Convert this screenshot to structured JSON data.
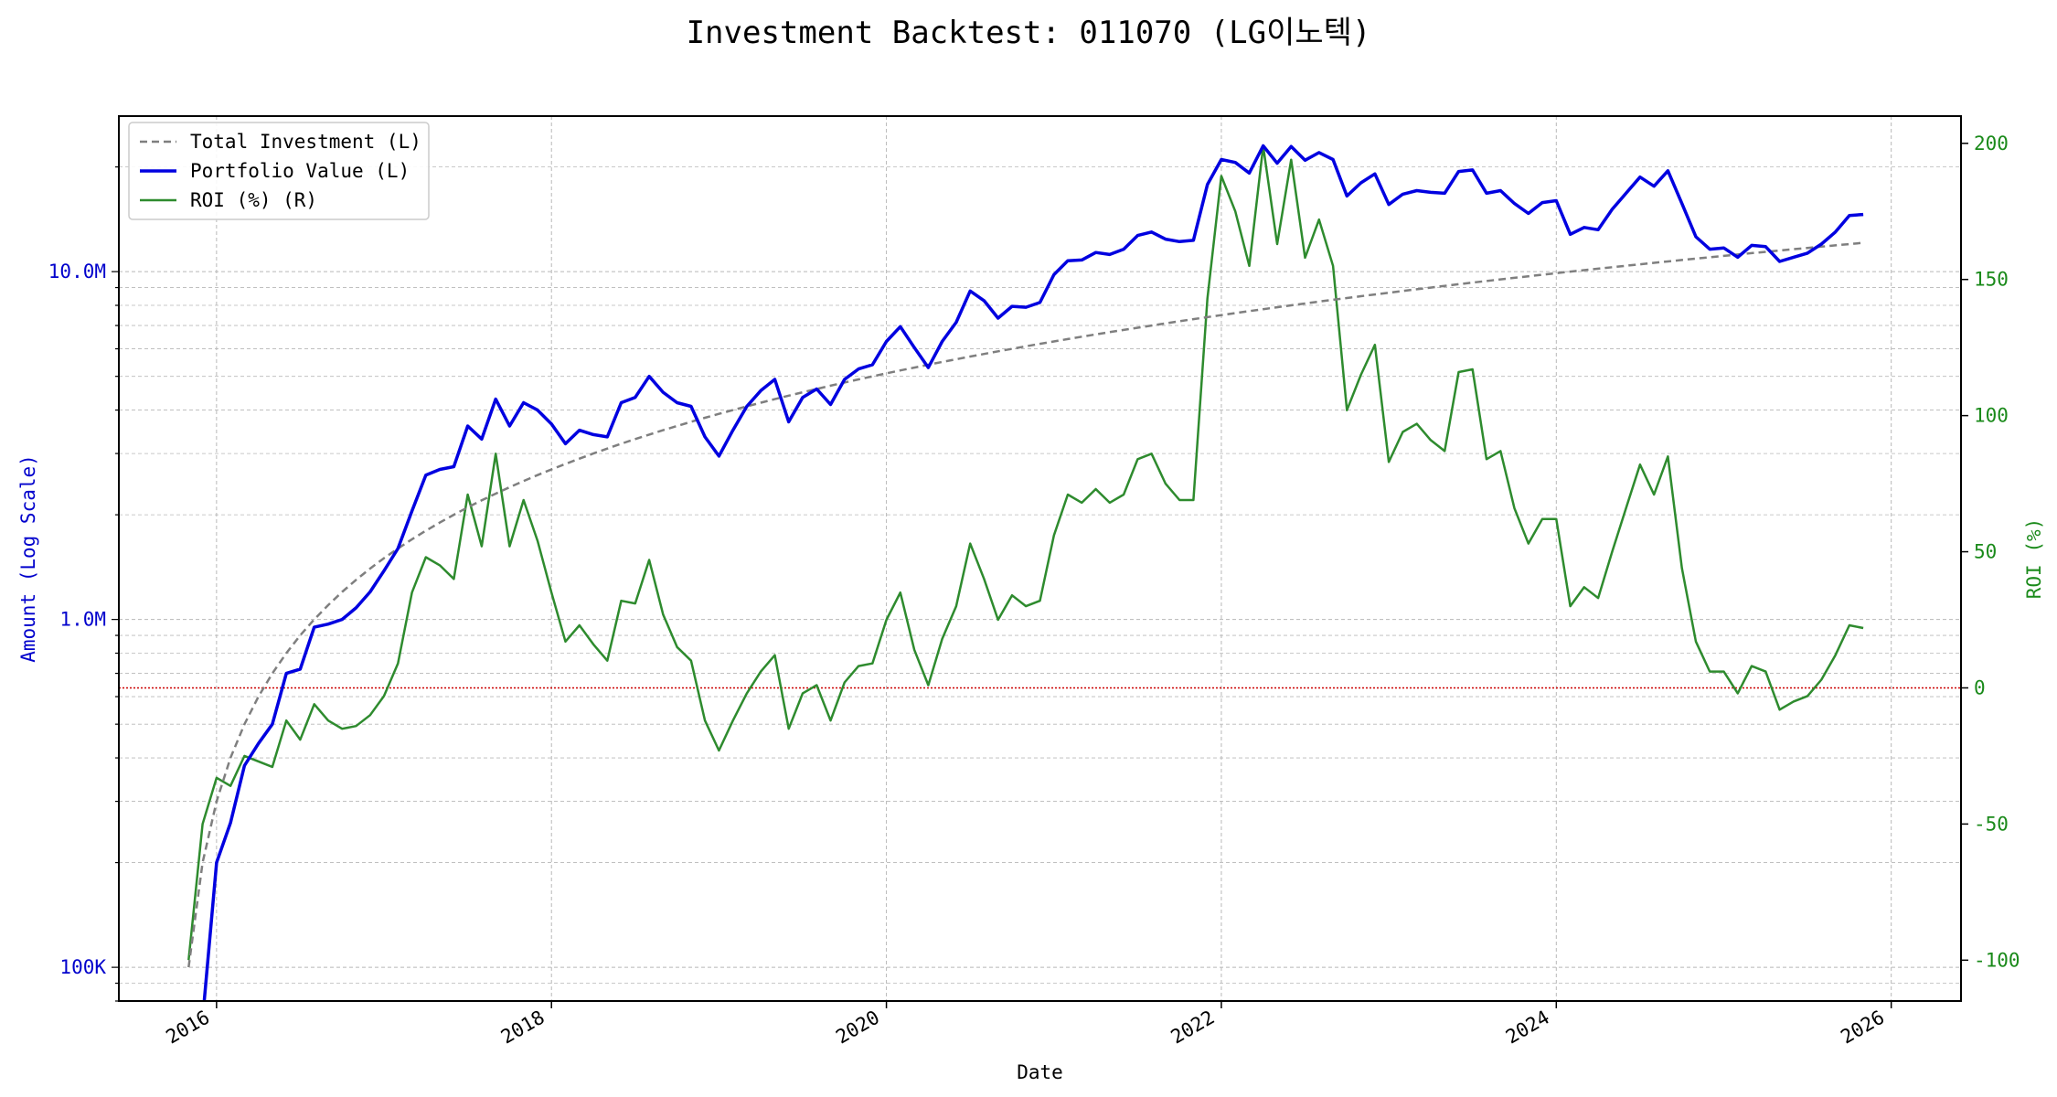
{
  "colors": {
    "investment": "#7f7f7f",
    "portfolio": "#0000e0",
    "roi": "#2e8b2e",
    "left_axis": "#0000cc",
    "right_axis": "#1a8a1a",
    "zero_line": "#cc0000",
    "grid": "#b8b8b8"
  },
  "chart_data": {
    "type": "line",
    "title": "Investment Backtest: 011070 (LG이노텍)",
    "xlabel": "Date",
    "ylabel_left": "Amount (Log Scale)",
    "ylabel_right": "ROI (%)",
    "x_ticks": [
      "2016",
      "2018",
      "2020",
      "2022",
      "2024",
      "2026"
    ],
    "y_left_ticks": [
      "100K",
      "1.0M",
      "10.0M"
    ],
    "y_right_ticks": [
      "-100",
      "-50",
      "0",
      "50",
      "100",
      "150",
      "200"
    ],
    "xlim": [
      "2015-06-01",
      "2026-06-01"
    ],
    "ylim_left": [
      80000,
      28000000
    ],
    "ylim_left_scale": "log",
    "ylim_right": [
      -115,
      210
    ],
    "grid": true,
    "legend_position": "top-left",
    "x": [
      "2015-11",
      "2015-12",
      "2016-01",
      "2016-02",
      "2016-03",
      "2016-04",
      "2016-05",
      "2016-06",
      "2016-07",
      "2016-08",
      "2016-09",
      "2016-10",
      "2016-11",
      "2016-12",
      "2017-01",
      "2017-02",
      "2017-03",
      "2017-04",
      "2017-05",
      "2017-06",
      "2017-07",
      "2017-08",
      "2017-09",
      "2017-10",
      "2017-11",
      "2017-12",
      "2018-01",
      "2018-02",
      "2018-03",
      "2018-04",
      "2018-05",
      "2018-06",
      "2018-07",
      "2018-08",
      "2018-09",
      "2018-10",
      "2018-11",
      "2018-12",
      "2019-01",
      "2019-02",
      "2019-03",
      "2019-04",
      "2019-05",
      "2019-06",
      "2019-07",
      "2019-08",
      "2019-09",
      "2019-10",
      "2019-11",
      "2019-12",
      "2020-01",
      "2020-02",
      "2020-03",
      "2020-04",
      "2020-05",
      "2020-06",
      "2020-07",
      "2020-08",
      "2020-09",
      "2020-10",
      "2020-11",
      "2020-12",
      "2021-01",
      "2021-02",
      "2021-03",
      "2021-04",
      "2021-05",
      "2021-06",
      "2021-07",
      "2021-08",
      "2021-09",
      "2021-10",
      "2021-11",
      "2021-12",
      "2022-01",
      "2022-02",
      "2022-03",
      "2022-04",
      "2022-05",
      "2022-06",
      "2022-07",
      "2022-08",
      "2022-09",
      "2022-10",
      "2022-11",
      "2022-12",
      "2023-01",
      "2023-02",
      "2023-03",
      "2023-04",
      "2023-05",
      "2023-06",
      "2023-07",
      "2023-08",
      "2023-09",
      "2023-10",
      "2023-11",
      "2023-12",
      "2024-01",
      "2024-02",
      "2024-03",
      "2024-04",
      "2024-05",
      "2024-06",
      "2024-07",
      "2024-08",
      "2024-09",
      "2024-10",
      "2024-11",
      "2024-12",
      "2025-01",
      "2025-02",
      "2025-03",
      "2025-04",
      "2025-05",
      "2025-06",
      "2025-07",
      "2025-08",
      "2025-09",
      "2025-10",
      "2025-11"
    ],
    "series": [
      {
        "name": "Total Investment (L)",
        "axis": "left",
        "style": "dashed",
        "values": [
          100000,
          200000,
          300000,
          400000,
          500000,
          600000,
          700000,
          800000,
          900000,
          1000000,
          1100000,
          1200000,
          1300000,
          1400000,
          1500000,
          1600000,
          1700000,
          1800000,
          1900000,
          2000000,
          2100000,
          2200000,
          2300000,
          2400000,
          2500000,
          2600000,
          2700000,
          2800000,
          2900000,
          3000000,
          3100000,
          3200000,
          3300000,
          3400000,
          3500000,
          3600000,
          3700000,
          3800000,
          3900000,
          4000000,
          4100000,
          4200000,
          4300000,
          4400000,
          4500000,
          4600000,
          4700000,
          4800000,
          4900000,
          5000000,
          5100000,
          5200000,
          5300000,
          5400000,
          5500000,
          5600000,
          5700000,
          5800000,
          5900000,
          6000000,
          6100000,
          6200000,
          6300000,
          6400000,
          6500000,
          6600000,
          6700000,
          6800000,
          6900000,
          7000000,
          7100000,
          7200000,
          7300000,
          7400000,
          7500000,
          7600000,
          7700000,
          7800000,
          7900000,
          8000000,
          8100000,
          8200000,
          8300000,
          8400000,
          8500000,
          8600000,
          8700000,
          8800000,
          8900000,
          9000000,
          9100000,
          9200000,
          9300000,
          9400000,
          9500000,
          9600000,
          9700000,
          9800000,
          9900000,
          10000000,
          10100000,
          10200000,
          10300000,
          10400000,
          10500000,
          10600000,
          10700000,
          10800000,
          10900000,
          11000000,
          11100000,
          11200000,
          11300000,
          11400000,
          11500000,
          11600000,
          11700000,
          11800000,
          11900000,
          12000000,
          12100000
        ]
      },
      {
        "name": "Portfolio Value (L)",
        "axis": "left",
        "style": "solid",
        "values": [
          null,
          70000,
          200000,
          260000,
          380000,
          440000,
          500000,
          700000,
          720000,
          950000,
          970000,
          1000000,
          1080000,
          1200000,
          1380000,
          1600000,
          2050000,
          2600000,
          2700000,
          2750000,
          3600000,
          3300000,
          4300000,
          3600000,
          4200000,
          4000000,
          3650000,
          3200000,
          3500000,
          3400000,
          3350000,
          4200000,
          4350000,
          5000000,
          4500000,
          4200000,
          4100000,
          3350000,
          2950000,
          3500000,
          4100000,
          4550000,
          4900000,
          3700000,
          4350000,
          4600000,
          4150000,
          4900000,
          5250000,
          5400000,
          6300000,
          6950000,
          6050000,
          5300000,
          6300000,
          7150000,
          8800000,
          8250000,
          7350000,
          7950000,
          7900000,
          8150000,
          9800000,
          10750000,
          10800000,
          11350000,
          11200000,
          11600000,
          12700000,
          13000000,
          12400000,
          12200000,
          12300000,
          17800000,
          21000000,
          20600000,
          19200000,
          23000000,
          20500000,
          22900000,
          20900000,
          22000000,
          21000000,
          16500000,
          18000000,
          19100000,
          15600000,
          16700000,
          17100000,
          16900000,
          16800000,
          19400000,
          19600000,
          16800000,
          17100000,
          15700000,
          14700000,
          15800000,
          16000000,
          12800000,
          13400000,
          13200000,
          15100000,
          16800000,
          18700000,
          17600000,
          19500000,
          15700000,
          12600000,
          11600000,
          11700000,
          11000000,
          11900000,
          11800000,
          10700000,
          11000000,
          11300000,
          12000000,
          13000000,
          14500000,
          14600000
        ]
      },
      {
        "name": "ROI (%) (R)",
        "axis": "right",
        "style": "solid",
        "values": [
          -100,
          -50,
          -33,
          -36,
          -25,
          -27,
          -29,
          -12,
          -19,
          -6,
          -12,
          -15,
          -14,
          -10,
          -3,
          9,
          35,
          48,
          45,
          40,
          71,
          52,
          86,
          52,
          69,
          54,
          35,
          17,
          23,
          16,
          10,
          32,
          31,
          47,
          27,
          15,
          10,
          -12,
          -23,
          -12,
          -2,
          6,
          12,
          -15,
          -2,
          1,
          -12,
          2,
          8,
          9,
          25,
          35,
          14,
          1,
          18,
          30,
          53,
          40,
          25,
          34,
          30,
          32,
          56,
          71,
          68,
          73,
          68,
          71,
          84,
          86,
          75,
          69,
          69,
          143,
          188,
          175,
          155,
          199,
          163,
          194,
          158,
          172,
          155,
          102,
          115,
          126,
          83,
          94,
          97,
          91,
          87,
          116,
          117,
          84,
          87,
          66,
          53,
          62,
          62,
          30,
          37,
          33,
          50,
          66,
          82,
          71,
          85,
          44,
          17,
          6,
          6,
          -2,
          8,
          6,
          -8,
          -5,
          -3,
          3,
          12,
          23,
          22
        ]
      }
    ]
  }
}
